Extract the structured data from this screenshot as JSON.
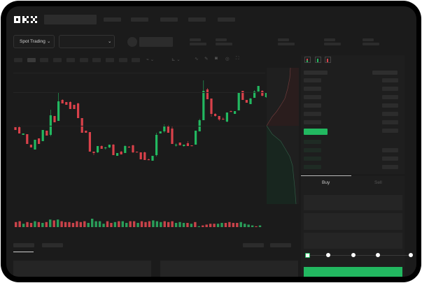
{
  "brand": {
    "logo": "OKX"
  },
  "header": {
    "market_select_label": "Spot Trading",
    "market_select_icon": "chevron-down-icon"
  },
  "order_form": {
    "tabs": [
      {
        "label": "Buy",
        "active": true
      },
      {
        "label": "Sell",
        "active": false
      }
    ],
    "leverage_slider_value": 0,
    "slider_stops": 5
  },
  "colors": {
    "up": "#22b860",
    "down": "#d9414a",
    "background": "#1b1b1b",
    "placeholder": "#2c2c2c"
  },
  "chart_data": {
    "type": "candlestick",
    "ylim": [
      60,
      190
    ],
    "candles": [
      [
        118,
        118,
        114,
        114
      ],
      [
        118,
        119,
        109,
        109
      ],
      [
        107,
        109,
        107,
        109
      ],
      [
        108,
        108,
        94,
        94
      ],
      [
        93,
        93,
        89,
        89
      ],
      [
        86,
        100,
        86,
        100
      ],
      [
        102,
        102,
        94,
        94
      ],
      [
        98,
        114,
        98,
        114
      ],
      [
        113,
        113,
        106,
        106
      ],
      [
        107,
        143,
        105,
        135
      ],
      [
        134,
        134,
        125,
        125
      ],
      [
        127,
        168,
        127,
        155
      ],
      [
        157,
        158,
        152,
        152
      ],
      [
        154,
        154,
        150,
        150
      ],
      [
        154,
        155,
        144,
        144
      ],
      [
        150,
        150,
        144,
        144
      ],
      [
        152,
        153,
        131,
        131
      ],
      [
        131,
        131,
        110,
        110
      ],
      [
        113,
        113,
        110,
        110
      ],
      [
        111,
        111,
        83,
        83
      ],
      [
        83,
        83,
        78,
        81
      ],
      [
        82,
        91,
        81,
        91
      ],
      [
        91,
        92,
        87,
        87
      ],
      [
        88,
        90,
        86,
        89
      ],
      [
        89,
        93,
        88,
        93
      ],
      [
        93,
        94,
        78,
        78
      ],
      [
        77,
        81,
        77,
        81
      ],
      [
        83,
        84,
        79,
        79
      ],
      [
        81,
        92,
        81,
        91
      ],
      [
        90,
        91,
        89,
        89
      ],
      [
        92,
        93,
        81,
        82
      ],
      [
        83,
        83,
        82,
        82
      ],
      [
        82,
        82,
        72,
        72
      ],
      [
        82,
        83,
        71,
        71
      ],
      [
        72,
        73,
        71,
        71
      ],
      [
        70,
        77,
        70,
        77
      ],
      [
        78,
        110,
        76,
        107
      ],
      [
        109,
        112,
        109,
        112
      ],
      [
        112,
        122,
        110,
        120
      ],
      [
        120,
        121,
        110,
        110
      ],
      [
        116,
        119,
        94,
        94
      ],
      [
        93,
        95,
        90,
        93
      ],
      [
        96,
        96,
        92,
        92
      ],
      [
        91,
        93,
        90,
        93
      ],
      [
        95,
        98,
        91,
        91
      ],
      [
        92,
        92,
        91,
        91
      ],
      [
        93,
        113,
        93,
        113
      ],
      [
        112,
        130,
        112,
        128
      ],
      [
        128,
        185,
        128,
        170
      ],
      [
        172,
        174,
        158,
        158
      ],
      [
        159,
        159,
        133,
        137
      ],
      [
        137,
        138,
        133,
        134
      ],
      [
        134,
        134,
        127,
        129
      ],
      [
        130,
        132,
        129,
        129
      ],
      [
        126,
        139,
        125,
        139
      ],
      [
        141,
        142,
        140,
        140
      ],
      [
        137,
        141,
        137,
        141
      ],
      [
        142,
        168,
        142,
        168
      ],
      [
        170,
        170,
        157,
        157
      ],
      [
        157,
        157,
        153,
        153
      ],
      [
        151,
        160,
        151,
        159
      ],
      [
        160,
        171,
        160,
        169
      ],
      [
        169,
        177,
        169,
        177
      ],
      [
        170,
        171,
        162,
        163
      ],
      [
        161,
        167,
        160,
        167
      ]
    ],
    "volume": [
      6,
      7,
      4,
      6,
      5,
      7,
      6,
      5,
      6,
      9,
      8,
      9,
      7,
      6,
      6,
      5,
      7,
      6,
      7,
      5,
      10,
      7,
      7,
      4,
      7,
      5,
      6,
      7,
      7,
      5,
      7,
      7,
      5,
      7,
      6,
      7,
      8,
      7,
      6,
      7,
      6,
      7,
      5,
      6,
      5,
      5,
      4,
      6,
      1,
      2,
      3,
      4,
      4,
      4,
      5,
      5,
      6,
      5,
      5,
      6,
      4,
      3,
      2,
      1,
      2
    ],
    "volume_up": [
      false,
      false,
      true,
      false,
      false,
      true,
      false,
      true,
      false,
      true,
      false,
      true,
      false,
      false,
      false,
      false,
      false,
      false,
      false,
      true,
      true,
      true,
      true,
      true,
      false,
      false,
      true,
      false,
      true,
      true,
      false,
      false,
      true,
      false,
      false,
      false,
      true,
      true,
      true,
      false,
      false,
      false,
      true,
      true,
      true,
      false,
      true,
      false,
      true,
      false,
      false,
      false,
      false,
      true,
      true,
      false,
      false,
      false,
      false,
      true,
      true,
      true,
      true,
      false,
      true
    ]
  }
}
